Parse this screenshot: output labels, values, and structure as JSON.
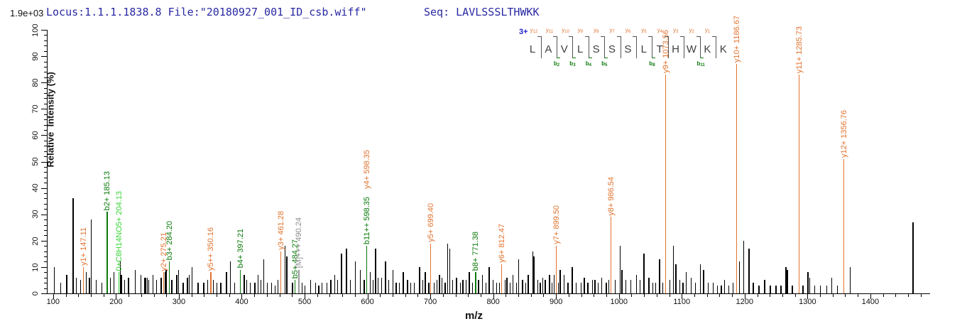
{
  "header": {
    "locus_text": "Locus:1.1.1.1838.8 File:\"20180927_001_ID_csb.wiff\"",
    "seq_text": "Seq: LAVLSSSLTHWKK"
  },
  "axes": {
    "y_title": "Relative  Intensity (%)",
    "x_title": "m/z",
    "y_full_scale_label": "1.9e+03",
    "y_ticks": [
      0,
      10,
      20,
      30,
      40,
      50,
      60,
      70,
      80,
      90,
      100
    ],
    "x_ticks": [
      100,
      200,
      300,
      400,
      500,
      600,
      700,
      800,
      900,
      1000,
      1100,
      1200,
      1300,
      1400
    ]
  },
  "sequence_panel": {
    "charge": "3+",
    "residues": [
      "L",
      "A",
      "V",
      "L",
      "S",
      "S",
      "S",
      "L",
      "T",
      "H",
      "W",
      "K",
      "K"
    ],
    "y_markers": [
      "y12",
      "y11",
      "y10",
      "y9",
      "y8",
      "y7",
      "y6",
      "y5",
      "y4",
      "y3",
      "y2",
      "y1"
    ],
    "b_markers": [
      {
        "gap": 1,
        "label": "b2"
      },
      {
        "gap": 2,
        "label": "b3"
      },
      {
        "gap": 3,
        "label": "b4"
      },
      {
        "gap": 4,
        "label": "b5"
      },
      {
        "gap": 7,
        "label": "b8"
      },
      {
        "gap": 10,
        "label": "b11"
      }
    ]
  },
  "chart_data": {
    "type": "bar",
    "subtype": "mass-spectrum-sticks",
    "title": "",
    "xlabel": "m/z",
    "ylabel": "Relative  Intensity (%)",
    "xlim": [
      90,
      1495
    ],
    "ylim": [
      0,
      100
    ],
    "grid": false,
    "intensity_full_scale": "1.9e+03",
    "colors": {
      "y_ion": "#e2732e",
      "b_ion": "#0a7a0a",
      "special": "#35d435",
      "precursor": "#8c8c8c",
      "unassigned": "#000000"
    },
    "annotated_peaks": [
      {
        "mz": 147.11,
        "pct": 10,
        "key": "y",
        "label": "y1+ 147.11"
      },
      {
        "mz": 185.13,
        "pct": 31,
        "key": "b",
        "label": "b2+ 185.13"
      },
      {
        "mz": 204.13,
        "pct": 8,
        "key": "g",
        "label": "0+C8H14NO5+ 204.13"
      },
      {
        "mz": 275.21,
        "pct": 8,
        "key": "y",
        "label": "y2+ 275.21"
      },
      {
        "mz": 284.2,
        "pct": 12,
        "key": "b",
        "label": "b3+ 284.20"
      },
      {
        "mz": 350.16,
        "pct": 8,
        "key": "y",
        "label": "y5++ 350.16"
      },
      {
        "mz": 397.21,
        "pct": 9,
        "key": "b",
        "label": "b4+ 397.21"
      },
      {
        "mz": 461.28,
        "pct": 16,
        "key": "y",
        "label": "y3+ 461.28"
      },
      {
        "mz": 484.27,
        "pct": 5,
        "key": "b",
        "label": "b5+ 484.27"
      },
      {
        "mz": 490.24,
        "pct": 9,
        "key": "m",
        "label": "[M]+++ 490.24"
      },
      {
        "mz": 598.35,
        "pct": 18,
        "key": "b",
        "label": "b11++ 598.35",
        "label2": "y4+ 598.35",
        "key2": "y"
      },
      {
        "mz": 699.4,
        "pct": 19,
        "key": "y",
        "label": "y5+ 699.40"
      },
      {
        "mz": 771.38,
        "pct": 8,
        "key": "b",
        "label": "b8+ 771.38"
      },
      {
        "mz": 812.47,
        "pct": 11,
        "key": "y",
        "label": "y6+ 812.47"
      },
      {
        "mz": 899.5,
        "pct": 18,
        "key": "y",
        "label": "y7+ 899.50"
      },
      {
        "mz": 986.54,
        "pct": 29,
        "key": "y",
        "label": "y8+ 986.54"
      },
      {
        "mz": 1073.56,
        "pct": 83,
        "key": "y",
        "label": "y9+ 1073.56"
      },
      {
        "mz": 1186.67,
        "pct": 87,
        "key": "y",
        "label": "y10+ 1186.67"
      },
      {
        "mz": 1285.73,
        "pct": 83,
        "key": "y",
        "label": "y11+ 1285.73"
      },
      {
        "mz": 1356.76,
        "pct": 51,
        "key": "y",
        "label": "y12+ 1356.76"
      }
    ],
    "unannotated_peaks": [
      [
        101,
        10
      ],
      [
        111,
        4
      ],
      [
        121,
        7
      ],
      [
        131,
        36
      ],
      [
        136,
        6
      ],
      [
        143,
        5
      ],
      [
        152,
        8
      ],
      [
        157,
        6
      ],
      [
        160,
        28
      ],
      [
        168,
        5
      ],
      [
        177,
        4
      ],
      [
        190,
        6
      ],
      [
        196,
        8
      ],
      [
        206,
        12
      ],
      [
        208,
        7
      ],
      [
        213,
        5
      ],
      [
        219,
        6
      ],
      [
        230,
        9
      ],
      [
        239,
        7
      ],
      [
        245,
        6
      ],
      [
        247,
        6
      ],
      [
        249,
        6
      ],
      [
        251,
        5
      ],
      [
        258,
        7
      ],
      [
        264,
        5
      ],
      [
        271,
        6
      ],
      [
        277,
        8
      ],
      [
        279,
        9
      ],
      [
        288,
        5
      ],
      [
        296,
        7
      ],
      [
        299,
        9
      ],
      [
        306,
        4
      ],
      [
        313,
        6
      ],
      [
        316,
        7
      ],
      [
        320,
        10
      ],
      [
        330,
        4
      ],
      [
        339,
        4
      ],
      [
        345,
        5
      ],
      [
        354,
        5
      ],
      [
        360,
        4
      ],
      [
        366,
        4
      ],
      [
        375,
        8
      ],
      [
        381,
        12
      ],
      [
        388,
        4
      ],
      [
        403,
        7
      ],
      [
        407,
        5
      ],
      [
        413,
        4
      ],
      [
        420,
        4
      ],
      [
        425,
        7
      ],
      [
        430,
        5
      ],
      [
        434,
        13
      ],
      [
        440,
        4
      ],
      [
        447,
        4
      ],
      [
        452,
        3
      ],
      [
        457,
        5
      ],
      [
        468,
        18
      ],
      [
        471,
        14
      ],
      [
        480,
        4
      ],
      [
        495,
        4
      ],
      [
        500,
        3
      ],
      [
        509,
        5
      ],
      [
        517,
        4
      ],
      [
        522,
        3
      ],
      [
        527,
        4
      ],
      [
        535,
        4
      ],
      [
        541,
        5
      ],
      [
        547,
        7
      ],
      [
        552,
        5
      ],
      [
        558,
        15
      ],
      [
        566,
        17
      ],
      [
        572,
        5
      ],
      [
        580,
        12
      ],
      [
        588,
        9
      ],
      [
        594,
        5
      ],
      [
        604,
        8
      ],
      [
        608,
        5
      ],
      [
        612,
        17
      ],
      [
        616,
        6
      ],
      [
        622,
        6
      ],
      [
        628,
        12
      ],
      [
        633,
        5
      ],
      [
        640,
        9
      ],
      [
        645,
        4
      ],
      [
        650,
        4
      ],
      [
        656,
        8
      ],
      [
        663,
        5
      ],
      [
        668,
        4
      ],
      [
        674,
        4
      ],
      [
        682,
        10
      ],
      [
        687,
        5
      ],
      [
        691,
        8
      ],
      [
        697,
        4
      ],
      [
        705,
        4
      ],
      [
        710,
        5
      ],
      [
        714,
        7
      ],
      [
        718,
        6
      ],
      [
        723,
        4
      ],
      [
        727,
        19
      ],
      [
        730,
        17
      ],
      [
        735,
        5
      ],
      [
        741,
        6
      ],
      [
        747,
        4
      ],
      [
        751,
        5
      ],
      [
        756,
        5
      ],
      [
        761,
        8
      ],
      [
        766,
        4
      ],
      [
        776,
        5
      ],
      [
        782,
        7
      ],
      [
        788,
        4
      ],
      [
        793,
        10
      ],
      [
        799,
        5
      ],
      [
        805,
        4
      ],
      [
        809,
        4
      ],
      [
        818,
        5
      ],
      [
        821,
        6
      ],
      [
        826,
        4
      ],
      [
        831,
        7
      ],
      [
        836,
        4
      ],
      [
        840,
        13
      ],
      [
        846,
        5
      ],
      [
        851,
        4
      ],
      [
        855,
        7
      ],
      [
        862,
        16
      ],
      [
        864,
        14
      ],
      [
        870,
        5
      ],
      [
        874,
        4
      ],
      [
        878,
        6
      ],
      [
        882,
        5
      ],
      [
        889,
        7
      ],
      [
        893,
        4
      ],
      [
        896,
        7
      ],
      [
        903,
        4
      ],
      [
        906,
        9
      ],
      [
        912,
        7
      ],
      [
        918,
        4
      ],
      [
        925,
        10
      ],
      [
        931,
        4
      ],
      [
        939,
        4
      ],
      [
        944,
        6
      ],
      [
        950,
        4
      ],
      [
        957,
        5
      ],
      [
        961,
        5
      ],
      [
        966,
        4
      ],
      [
        972,
        6
      ],
      [
        979,
        4
      ],
      [
        983,
        5
      ],
      [
        993,
        5
      ],
      [
        1001,
        18
      ],
      [
        1004,
        9
      ],
      [
        1010,
        5
      ],
      [
        1018,
        5
      ],
      [
        1027,
        7
      ],
      [
        1033,
        5
      ],
      [
        1039,
        15
      ],
      [
        1047,
        6
      ],
      [
        1053,
        4
      ],
      [
        1058,
        4
      ],
      [
        1064,
        13
      ],
      [
        1069,
        4
      ],
      [
        1080,
        5
      ],
      [
        1086,
        18
      ],
      [
        1090,
        11
      ],
      [
        1096,
        5
      ],
      [
        1101,
        4
      ],
      [
        1106,
        8
      ],
      [
        1114,
        6
      ],
      [
        1121,
        4
      ],
      [
        1129,
        11
      ],
      [
        1134,
        9
      ],
      [
        1141,
        4
      ],
      [
        1149,
        4
      ],
      [
        1156,
        3
      ],
      [
        1162,
        3
      ],
      [
        1167,
        5
      ],
      [
        1174,
        3
      ],
      [
        1181,
        4
      ],
      [
        1191,
        12
      ],
      [
        1198,
        20
      ],
      [
        1206,
        17
      ],
      [
        1213,
        4
      ],
      [
        1222,
        3
      ],
      [
        1231,
        5
      ],
      [
        1240,
        3
      ],
      [
        1249,
        3
      ],
      [
        1257,
        3
      ],
      [
        1265,
        10
      ],
      [
        1267,
        9
      ],
      [
        1275,
        3
      ],
      [
        1292,
        3
      ],
      [
        1300,
        8
      ],
      [
        1303,
        6
      ],
      [
        1311,
        3
      ],
      [
        1320,
        3
      ],
      [
        1330,
        3
      ],
      [
        1338,
        6
      ],
      [
        1347,
        3
      ],
      [
        1367,
        10
      ],
      [
        1467,
        27
      ]
    ]
  }
}
